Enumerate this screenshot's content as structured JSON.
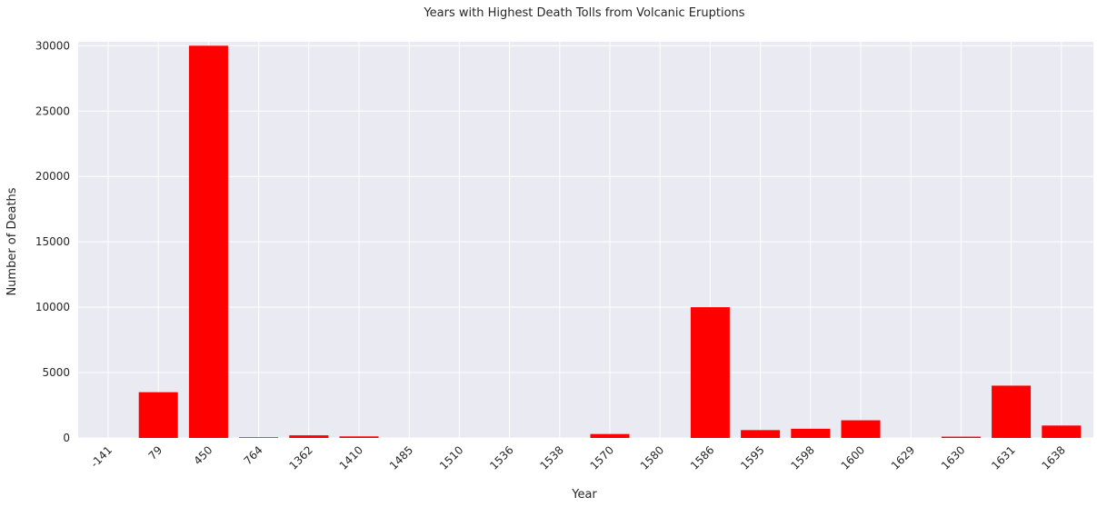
{
  "chart_data": {
    "type": "bar",
    "title": "Years with Highest Death Tolls from Volcanic Eruptions",
    "xlabel": "Year",
    "ylabel": "Number of Deaths",
    "categories": [
      "-141",
      "79",
      "450",
      "764",
      "1362",
      "1410",
      "1485",
      "1510",
      "1536",
      "1538",
      "1570",
      "1580",
      "1586",
      "1595",
      "1598",
      "1600",
      "1629",
      "1630",
      "1631",
      "1638"
    ],
    "values": [
      0,
      3500,
      30000,
      50,
      200,
      120,
      0,
      0,
      0,
      0,
      300,
      0,
      10000,
      600,
      700,
      1350,
      0,
      100,
      4000,
      950
    ],
    "ylim": [
      0,
      30300
    ],
    "yticks": [
      0,
      5000,
      10000,
      15000,
      20000,
      25000,
      30000
    ],
    "grid": true,
    "colors": {
      "bar": "#ff0000",
      "background": "#eaeaf2",
      "grid": "#ffffff"
    }
  }
}
